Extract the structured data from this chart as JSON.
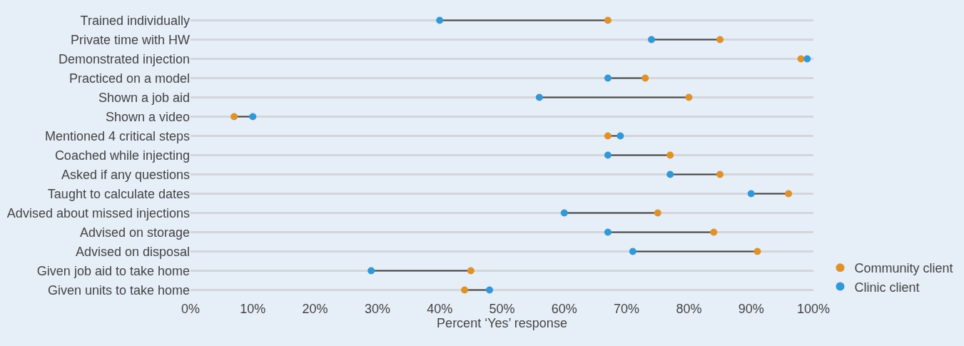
{
  "chart_data": {
    "type": "scatter",
    "orientation": "horizontal",
    "xlabel": "Percent ‘Yes’ response",
    "categories": [
      "Trained individually",
      "Private time with HW",
      "Demonstrated injection",
      "Practiced on a model",
      "Shown a job aid",
      "Shown a video",
      "Mentioned 4 critical steps",
      "Coached while injecting",
      "Asked if any questions",
      "Taught to calculate dates",
      "Advised about missed injections",
      "Advised on storage",
      "Advised on disposal",
      "Given job aid to take home",
      "Given units to take home"
    ],
    "series": [
      {
        "name": "Community client",
        "color": "#e0922a",
        "values": [
          67,
          85,
          98,
          73,
          80,
          7,
          67,
          77,
          85,
          96,
          75,
          84,
          91,
          45,
          44
        ]
      },
      {
        "name": "Clinic client",
        "color": "#3399d6",
        "values": [
          40,
          74,
          99,
          67,
          56,
          10,
          69,
          67,
          77,
          90,
          60,
          67,
          71,
          29,
          48
        ]
      }
    ],
    "xlim": [
      0,
      100
    ],
    "xticks": [
      {
        "value": 0,
        "label": "0%"
      },
      {
        "value": 10,
        "label": "10%"
      },
      {
        "value": 20,
        "label": "20%"
      },
      {
        "value": 30,
        "label": "30%"
      },
      {
        "value": 40,
        "label": "40%"
      },
      {
        "value": 50,
        "label": "50%"
      },
      {
        "value": 60,
        "label": "60%"
      },
      {
        "value": 70,
        "label": "70%"
      },
      {
        "value": 80,
        "label": "80%"
      },
      {
        "value": 90,
        "label": "90%"
      },
      {
        "value": 100,
        "label": "100%"
      }
    ],
    "grid": "y",
    "legend": "bottom right",
    "marker": "circle"
  }
}
